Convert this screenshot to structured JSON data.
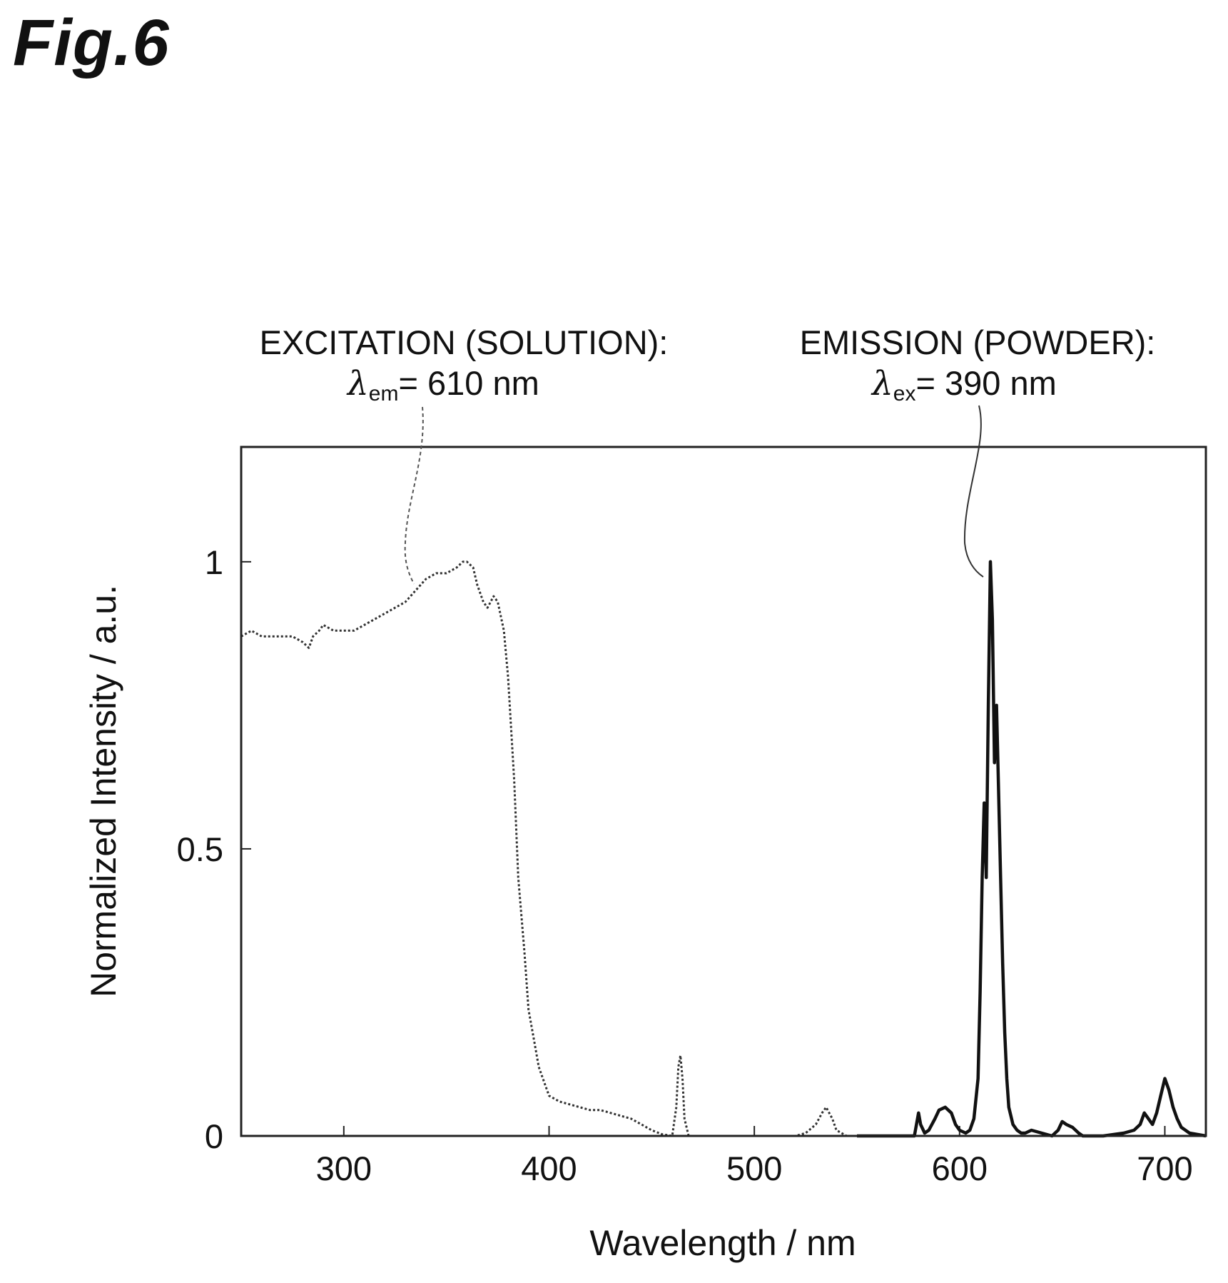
{
  "figure_label": "Fig.6",
  "annotations": {
    "excitation": {
      "title": "EXCITATION (SOLUTION):",
      "lambda": "λ",
      "sub": "em",
      "value": "= 610 nm"
    },
    "emission": {
      "title": "EMISSION (POWDER):",
      "lambda": "λ",
      "sub": "ex",
      "value": "= 390 nm"
    }
  },
  "chart_data": {
    "type": "line",
    "title": "",
    "xlabel": "Wavelength / nm",
    "ylabel": "Normalized Intensity / a.u.",
    "xlim": [
      250,
      720
    ],
    "ylim": [
      0,
      1.2
    ],
    "xticks": [
      300,
      400,
      500,
      600,
      700
    ],
    "yticks": [
      0,
      0.5,
      1
    ],
    "ytick_labels": [
      "0",
      "0.5",
      "1"
    ],
    "grid": false,
    "series": [
      {
        "style": "dotted",
        "x": [
          250,
          255,
          260,
          265,
          270,
          275,
          280,
          283,
          285,
          288,
          290,
          295,
          300,
          305,
          310,
          315,
          320,
          325,
          330,
          335,
          340,
          345,
          350,
          355,
          358,
          360,
          363,
          365,
          368,
          370,
          373,
          375,
          378,
          380,
          383,
          385,
          388,
          390,
          393,
          395,
          398,
          400,
          405,
          410,
          415,
          420,
          425,
          430,
          435,
          440,
          445,
          450,
          455,
          460,
          462,
          463,
          464,
          465,
          466,
          468,
          470,
          480,
          490,
          500,
          510,
          520,
          525,
          530,
          533,
          535,
          538,
          540,
          545,
          550
        ],
        "y": [
          0.87,
          0.88,
          0.87,
          0.87,
          0.87,
          0.87,
          0.86,
          0.85,
          0.87,
          0.88,
          0.89,
          0.88,
          0.88,
          0.88,
          0.89,
          0.9,
          0.91,
          0.92,
          0.93,
          0.95,
          0.97,
          0.98,
          0.98,
          0.99,
          1.0,
          1.0,
          0.99,
          0.96,
          0.93,
          0.92,
          0.94,
          0.93,
          0.88,
          0.8,
          0.62,
          0.45,
          0.32,
          0.22,
          0.16,
          0.12,
          0.09,
          0.07,
          0.06,
          0.055,
          0.05,
          0.045,
          0.045,
          0.04,
          0.035,
          0.03,
          0.02,
          0.01,
          0.003,
          0.0,
          0.05,
          0.12,
          0.14,
          0.1,
          0.03,
          0.0,
          0.0,
          0.0,
          0.0,
          0.0,
          0.0,
          0.0,
          0.005,
          0.02,
          0.04,
          0.05,
          0.03,
          0.01,
          0.0,
          0.0
        ]
      },
      {
        "style": "solid",
        "x": [
          550,
          570,
          578,
          579,
          580,
          581,
          583,
          585,
          588,
          590,
          593,
          596,
          598,
          600,
          603,
          605,
          607,
          609,
          610,
          611,
          612,
          613,
          614,
          615,
          616,
          617,
          618,
          619,
          620,
          621,
          622,
          623,
          624,
          626,
          628,
          630,
          632,
          635,
          640,
          645,
          648,
          650,
          652,
          655,
          658,
          660,
          670,
          680,
          685,
          688,
          690,
          692,
          694,
          696,
          698,
          700,
          702,
          704,
          706,
          708,
          712,
          720
        ],
        "y": [
          0.0,
          0.0,
          0.0,
          0.02,
          0.04,
          0.02,
          0.005,
          0.01,
          0.03,
          0.045,
          0.05,
          0.04,
          0.02,
          0.01,
          0.005,
          0.01,
          0.03,
          0.1,
          0.25,
          0.45,
          0.58,
          0.45,
          0.75,
          1.0,
          0.9,
          0.65,
          0.75,
          0.6,
          0.45,
          0.3,
          0.18,
          0.1,
          0.05,
          0.02,
          0.01,
          0.005,
          0.005,
          0.01,
          0.005,
          0.0,
          0.01,
          0.025,
          0.02,
          0.015,
          0.005,
          0.0,
          0.0,
          0.005,
          0.01,
          0.02,
          0.04,
          0.03,
          0.02,
          0.04,
          0.07,
          0.1,
          0.08,
          0.05,
          0.03,
          0.015,
          0.005,
          0.0
        ]
      }
    ]
  }
}
